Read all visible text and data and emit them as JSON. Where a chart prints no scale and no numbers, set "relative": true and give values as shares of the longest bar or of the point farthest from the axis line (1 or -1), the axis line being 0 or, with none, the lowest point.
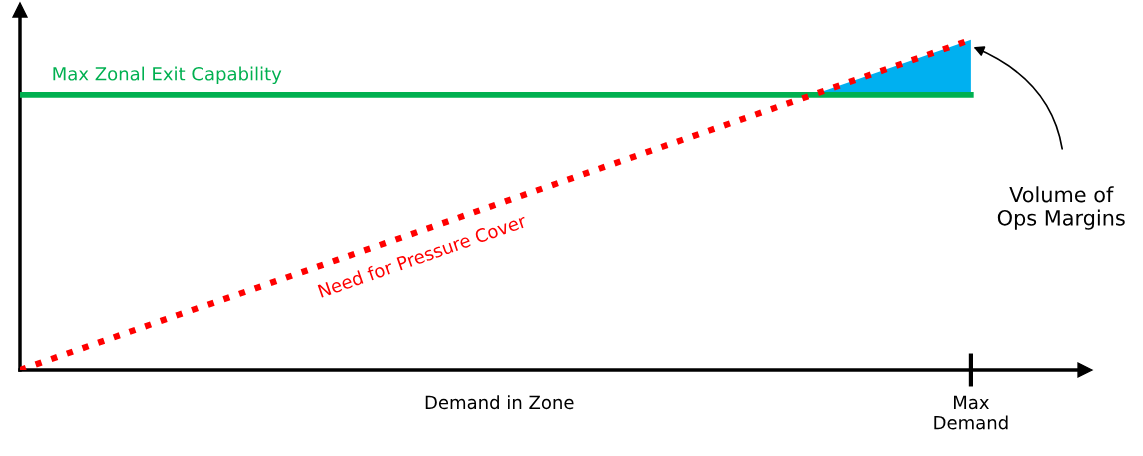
{
  "chart_data": {
    "type": "line",
    "relative": true,
    "xlabel": "Demand in Zone",
    "categories": [
      null,
      null,
      null,
      null,
      null,
      null,
      null
    ],
    "series": [
      {
        "name": "Max Zonal Exit Capability",
        "color": "#00b050",
        "values": [
          0.833,
          0.833,
          0.833,
          0.833,
          0.833,
          0.833,
          0.833
        ],
        "line_style": "solid"
      },
      {
        "name": "Need for Pressure Cover",
        "color": "#ff0000",
        "values": [
          0,
          0.167,
          0.333,
          0.5,
          0.667,
          0.833,
          1
        ],
        "lower": [
          null,
          null,
          null,
          null,
          null,
          0.833,
          0.833
        ],
        "upper": [
          null,
          null,
          null,
          null,
          null,
          0.833,
          1
        ],
        "line_style": "dotted"
      }
    ],
    "annotations": [
      "Volume of\nOps Margins",
      "Max\nDemand"
    ]
  }
}
